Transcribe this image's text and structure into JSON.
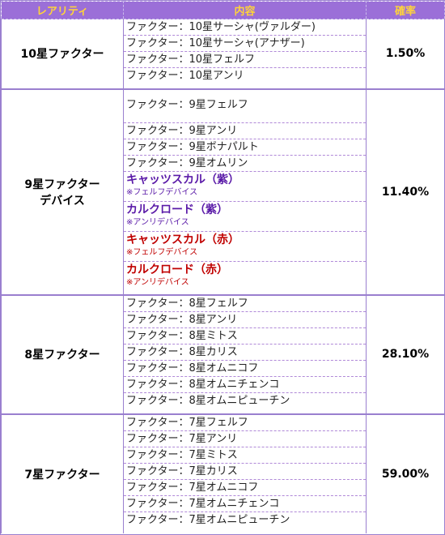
{
  "headers": {
    "rarity": "レアリティ",
    "content": "内容",
    "rate": "確率"
  },
  "groups": {
    "g10": {
      "rarity": "10星ファクター",
      "rate": "1.50%",
      "items": [
        "ファクター：10星サーシャ(ヴァルダー)",
        "ファクター：10星サーシャ(アナザー)",
        "ファクター：10星フェルフ",
        "ファクター：10星アンリ"
      ]
    },
    "g9": {
      "rarity_line1": "9星ファクター",
      "rarity_line2": "デバイス",
      "rate": "11.40%",
      "items": [
        "ファクター：9星フェルフ",
        "ファクター：9星アンリ",
        "ファクター：9星ボナパルト",
        "ファクター：9星オムリン"
      ],
      "devices": [
        {
          "name": "キャッツスカル（紫）",
          "note": "※フェルフデバイス",
          "color": "#5a1aa8"
        },
        {
          "name": "カルクロード（紫）",
          "note": "※アンリデバイス",
          "color": "#5a1aa8"
        },
        {
          "name": "キャッツスカル（赤）",
          "note": "※フェルフデバイス",
          "color": "#c00000"
        },
        {
          "name": "カルクロード（赤）",
          "note": "※アンリデバイス",
          "color": "#c00000"
        }
      ]
    },
    "g8": {
      "rarity": "8星ファクター",
      "rate": "28.10%",
      "items": [
        "ファクター：8星フェルフ",
        "ファクター：8星アンリ",
        "ファクター：8星ミトス",
        "ファクター：8星カリス",
        "ファクター：8星オムニコフ",
        "ファクター：8星オムニチェンコ",
        "ファクター：8星オムニピューチン"
      ]
    },
    "g7": {
      "rarity": "7星ファクター",
      "rate": "59.00%",
      "items": [
        "ファクター：7星フェルフ",
        "ファクター：7星アンリ",
        "ファクター：7星ミトス",
        "ファクター：7星カリス",
        "ファクター：7星オムニコフ",
        "ファクター：7星オムニチェンコ",
        "ファクター：7星オムニピューチン"
      ]
    }
  },
  "colors": {
    "header_bg": "#9b6fd8",
    "header_text": "#ffd33a",
    "border": "#9a7fcf",
    "device_purple": "#5a1aa8",
    "device_red": "#c00000"
  }
}
